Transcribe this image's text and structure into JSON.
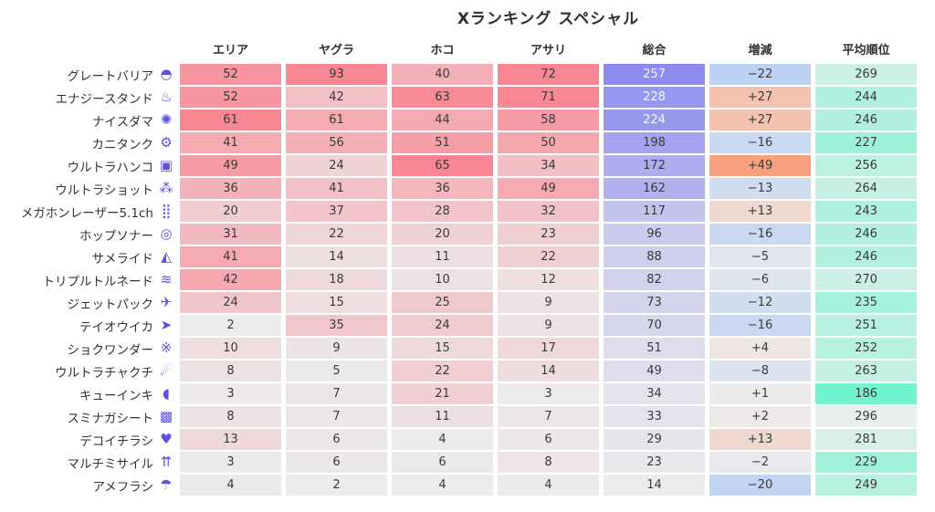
{
  "title": "Xランキング スペシャル",
  "colors": {
    "base_gray": "#ececec",
    "mode_high_red": "#f98793",
    "total_high_purple": "#8b8bf0",
    "total_text_light": "#f7f7fb",
    "change_positive_orange": "#f9a07f",
    "change_negative_blue": "#bdd2f3",
    "rank_low_green": "#e8efec",
    "rank_high_green": "#72f4d0",
    "icon_purple": "#5b51e0",
    "text_dark": "#3a3a3a"
  },
  "chart_data": {
    "type": "heatmap",
    "title": "Xランキング スペシャル",
    "columns": [
      "エリア",
      "ヤグラ",
      "ホコ",
      "アサリ",
      "総合",
      "増減",
      "平均順位"
    ],
    "column_kinds": [
      "mode",
      "mode",
      "mode",
      "mode",
      "total",
      "change",
      "rank"
    ],
    "rows": [
      {
        "label": "グレートバリア",
        "icon": "great-barrier-icon",
        "glyph": "◓",
        "values": [
          52,
          93,
          40,
          72,
          257,
          "−22",
          269
        ]
      },
      {
        "label": "エナジースタンド",
        "icon": "tacticooler-icon",
        "glyph": "♨",
        "values": [
          52,
          42,
          63,
          71,
          228,
          "+27",
          244
        ]
      },
      {
        "label": "ナイスダマ",
        "icon": "booyah-bomb-icon",
        "glyph": "✺",
        "values": [
          61,
          61,
          44,
          58,
          224,
          "+27",
          246
        ]
      },
      {
        "label": "カニタンク",
        "icon": "crab-tank-icon",
        "glyph": "⚙",
        "values": [
          41,
          56,
          51,
          50,
          198,
          "−16",
          227
        ]
      },
      {
        "label": "ウルトラハンコ",
        "icon": "ultra-stamp-icon",
        "glyph": "▣",
        "values": [
          49,
          24,
          65,
          34,
          172,
          "+49",
          256
        ]
      },
      {
        "label": "ウルトラショット",
        "icon": "trizooka-icon",
        "glyph": "⁂",
        "values": [
          36,
          41,
          36,
          49,
          162,
          "−13",
          264
        ]
      },
      {
        "label": "メガホンレーザー5.1ch",
        "icon": "killer-wail-icon",
        "glyph": "⣿",
        "values": [
          20,
          37,
          28,
          32,
          117,
          "+13",
          243
        ]
      },
      {
        "label": "ホップソナー",
        "icon": "wave-breaker-icon",
        "glyph": "◎",
        "values": [
          31,
          22,
          20,
          23,
          96,
          "−16",
          246
        ]
      },
      {
        "label": "サメライド",
        "icon": "reefslider-icon",
        "glyph": "◭",
        "values": [
          41,
          14,
          11,
          22,
          88,
          "−5",
          246
        ]
      },
      {
        "label": "トリプルトルネード",
        "icon": "triple-inkstrike-icon",
        "glyph": "≋",
        "values": [
          42,
          18,
          10,
          12,
          82,
          "−6",
          270
        ]
      },
      {
        "label": "ジェットパック",
        "icon": "inkjet-icon",
        "glyph": "✈",
        "values": [
          24,
          15,
          25,
          9,
          73,
          "−12",
          235
        ]
      },
      {
        "label": "テイオウイカ",
        "icon": "kraken-icon",
        "glyph": "➤",
        "values": [
          2,
          35,
          24,
          9,
          70,
          "−16",
          251
        ]
      },
      {
        "label": "ショクワンダー",
        "icon": "zipcaster-icon",
        "glyph": "※",
        "values": [
          10,
          9,
          15,
          17,
          51,
          "+4",
          252
        ]
      },
      {
        "label": "ウルトラチャクチ",
        "icon": "triple-splashdown-icon",
        "glyph": "☄",
        "values": [
          8,
          5,
          22,
          14,
          49,
          "−8",
          263
        ]
      },
      {
        "label": "キューインキ",
        "icon": "ink-vac-icon",
        "glyph": "◖",
        "values": [
          3,
          7,
          21,
          3,
          34,
          "+1",
          186
        ]
      },
      {
        "label": "スミナガシート",
        "icon": "splattercolor-screen-icon",
        "glyph": "▩",
        "values": [
          8,
          7,
          11,
          7,
          33,
          "+2",
          296
        ]
      },
      {
        "label": "デコイチラシ",
        "icon": "super-chump-icon",
        "glyph": "♥",
        "values": [
          13,
          6,
          4,
          6,
          29,
          "+13",
          281
        ]
      },
      {
        "label": "マルチミサイル",
        "icon": "tenta-missiles-icon",
        "glyph": "⇈",
        "values": [
          3,
          6,
          6,
          8,
          23,
          "−2",
          229
        ]
      },
      {
        "label": "アメフラシ",
        "icon": "ink-storm-icon",
        "glyph": "☂",
        "values": [
          4,
          2,
          4,
          4,
          14,
          "−20",
          249
        ]
      }
    ]
  }
}
